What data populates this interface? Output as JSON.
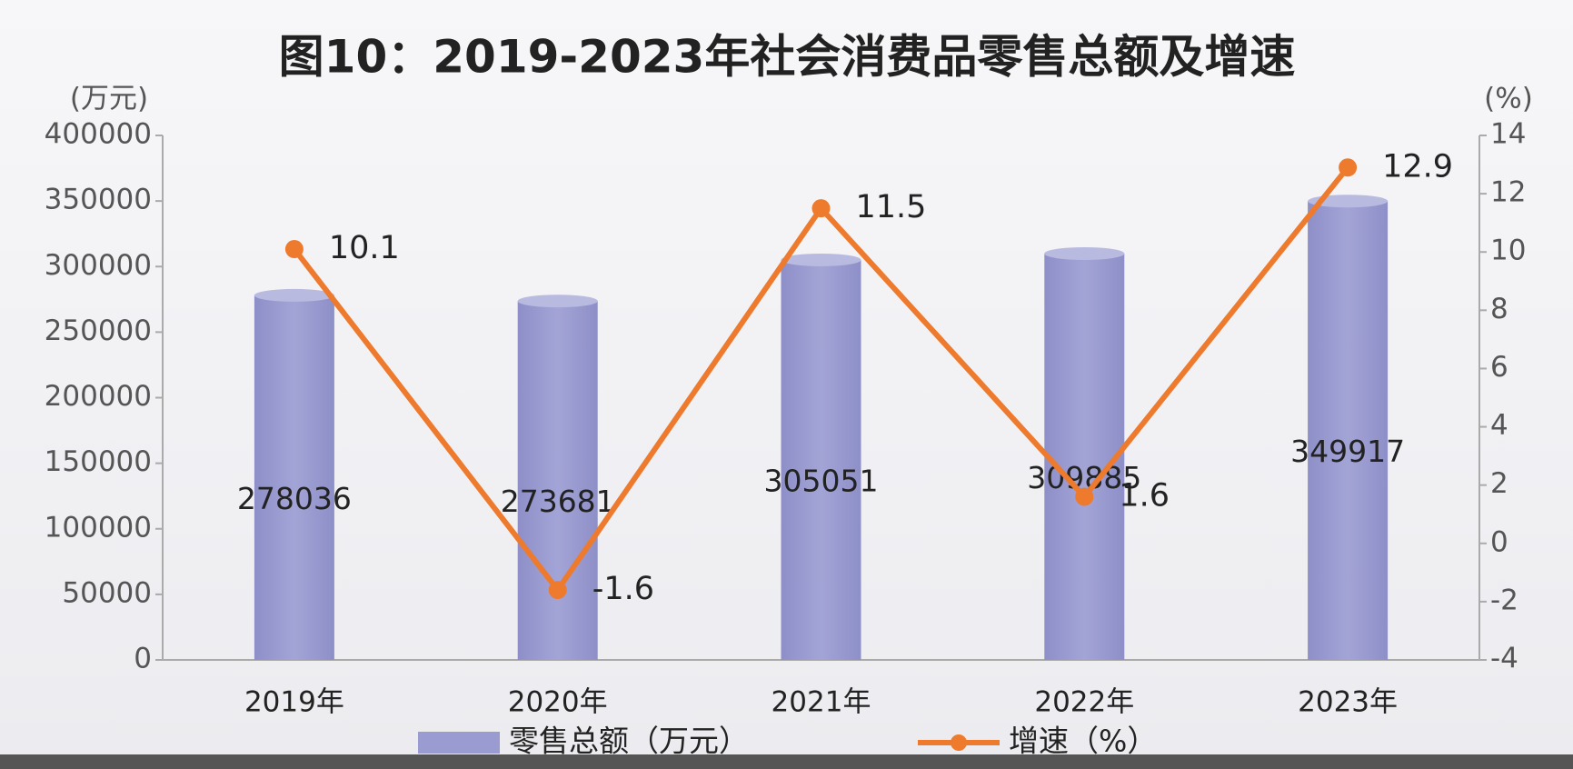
{
  "chart_data": {
    "type": "bar-line",
    "title": "图10：2019-2023年社会消费品零售总额及增速",
    "y_label": "(万元)",
    "y2_label": "(%)",
    "categories": [
      "2019年",
      "2020年",
      "2021年",
      "2022年",
      "2023年"
    ],
    "series": [
      {
        "name": "零售总额（万元）",
        "type": "bar",
        "color": "#9a9bd0",
        "values": [
          278036,
          273681,
          305051,
          309885,
          349917
        ]
      },
      {
        "name": "增速（%）",
        "type": "line",
        "axis": "y2",
        "color": "#ee7a2e",
        "values": [
          10.1,
          -1.6,
          11.5,
          1.6,
          12.9
        ]
      }
    ],
    "ylim": [
      0,
      400000
    ],
    "yticks": [
      0,
      50000,
      100000,
      150000,
      200000,
      250000,
      300000,
      350000,
      400000
    ],
    "y2lim": [
      -4,
      14
    ],
    "y2ticks": [
      -4,
      -2,
      0,
      2,
      4,
      6,
      8,
      10,
      12,
      14
    ],
    "grid": false
  }
}
